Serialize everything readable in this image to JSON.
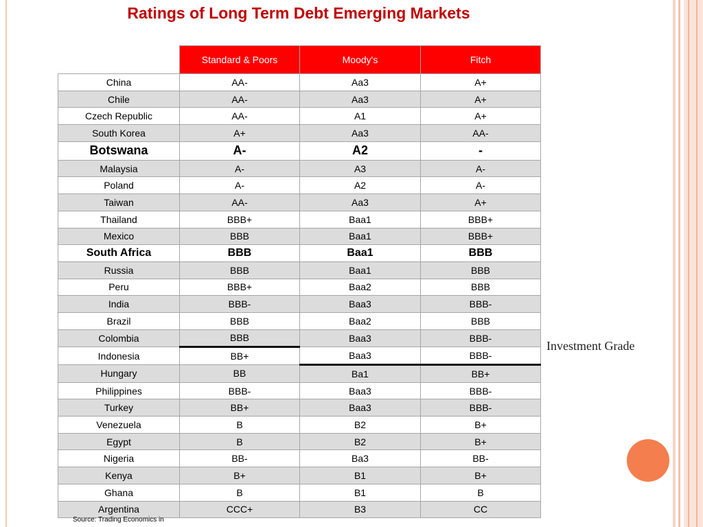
{
  "title": "Ratings of Long Term Debt Emerging Markets",
  "columns": [
    "Standard & Poors",
    "Moody's",
    "Fitch"
  ],
  "rows": [
    {
      "country": "China",
      "sp": "AA-",
      "moodys": "Aa3",
      "fitch": "A+"
    },
    {
      "country": "Chile",
      "sp": "AA-",
      "moodys": "Aa3",
      "fitch": "A+"
    },
    {
      "country": "Czech Republic",
      "sp": "AA-",
      "moodys": "A1",
      "fitch": "A+"
    },
    {
      "country": "South Korea",
      "sp": "A+",
      "moodys": "Aa3",
      "fitch": "AA-"
    },
    {
      "country": "Botswana",
      "sp": "A-",
      "moodys": "A2",
      "fitch": "-"
    },
    {
      "country": "Malaysia",
      "sp": "A-",
      "moodys": "A3",
      "fitch": "A-"
    },
    {
      "country": "Poland",
      "sp": "A-",
      "moodys": "A2",
      "fitch": "A-"
    },
    {
      "country": "Taiwan",
      "sp": "AA-",
      "moodys": "Aa3",
      "fitch": "A+"
    },
    {
      "country": "Thailand",
      "sp": "BBB+",
      "moodys": "Baa1",
      "fitch": "BBB+"
    },
    {
      "country": "Mexico",
      "sp": "BBB",
      "moodys": "Baa1",
      "fitch": "BBB+"
    },
    {
      "country": "South Africa",
      "sp": "BBB",
      "moodys": "Baa1",
      "fitch": "BBB"
    },
    {
      "country": "Russia",
      "sp": "BBB",
      "moodys": "Baa1",
      "fitch": "BBB"
    },
    {
      "country": "Peru",
      "sp": "BBB+",
      "moodys": "Baa2",
      "fitch": "BBB"
    },
    {
      "country": "India",
      "sp": "BBB-",
      "moodys": "Baa3",
      "fitch": "BBB-"
    },
    {
      "country": "Brazil",
      "sp": "BBB",
      "moodys": "Baa2",
      "fitch": "BBB"
    },
    {
      "country": "Colombia",
      "sp": "BBB",
      "moodys": "Baa3",
      "fitch": "BBB-"
    },
    {
      "country": "Indonesia",
      "sp": "BB+",
      "moodys": "Baa3",
      "fitch": "BBB-"
    },
    {
      "country": "Hungary",
      "sp": "BB",
      "moodys": "Ba1",
      "fitch": "BB+"
    },
    {
      "country": "Philippines",
      "sp": "BBB-",
      "moodys": "Baa3",
      "fitch": "BBB-"
    },
    {
      "country": "Turkey",
      "sp": "BB+",
      "moodys": "Baa3",
      "fitch": "BBB-"
    },
    {
      "country": "Venezuela",
      "sp": "B",
      "moodys": "B2",
      "fitch": "B+"
    },
    {
      "country": "Egypt",
      "sp": "B",
      "moodys": "B2",
      "fitch": "B+"
    },
    {
      "country": "Nigeria",
      "sp": "BB-",
      "moodys": "Ba3",
      "fitch": "BB-"
    },
    {
      "country": "Kenya",
      "sp": "B+",
      "moodys": "B1",
      "fitch": "B+"
    },
    {
      "country": "Ghana",
      "sp": "B",
      "moodys": "B1",
      "fitch": "B"
    },
    {
      "country": "Argentina",
      "sp": "CCC+",
      "moodys": "B3",
      "fitch": "CC"
    }
  ],
  "investment_grade_label": "Investment Grade",
  "source": "Source: Trading Economics in",
  "colors": {
    "header_bg": "#ff0000",
    "title": "#c00000",
    "accent": "#f47e4e"
  }
}
